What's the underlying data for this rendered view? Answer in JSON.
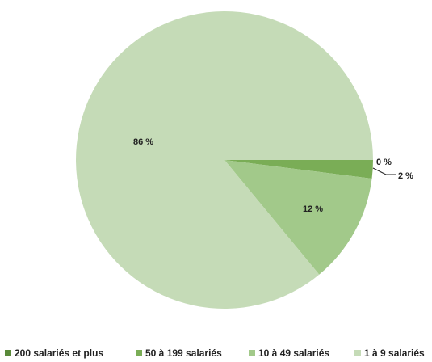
{
  "chart_data": {
    "type": "pie",
    "title": "",
    "start_angle_deg": 0,
    "direction": "clockwise",
    "slices": [
      {
        "name": "200 salariés et plus",
        "value": 0,
        "label": "0 %",
        "color": "#5a8a3a"
      },
      {
        "name": "50 à 199 salariés",
        "value": 2,
        "label": "2 %",
        "color": "#7aad56"
      },
      {
        "name": "10 à 49 salariés",
        "value": 12,
        "label": "12 %",
        "color": "#a2c98a"
      },
      {
        "name": "1 à 9 salariés",
        "value": 86,
        "label": "86 %",
        "color": "#c5dbb7"
      }
    ],
    "legend_position": "bottom"
  }
}
